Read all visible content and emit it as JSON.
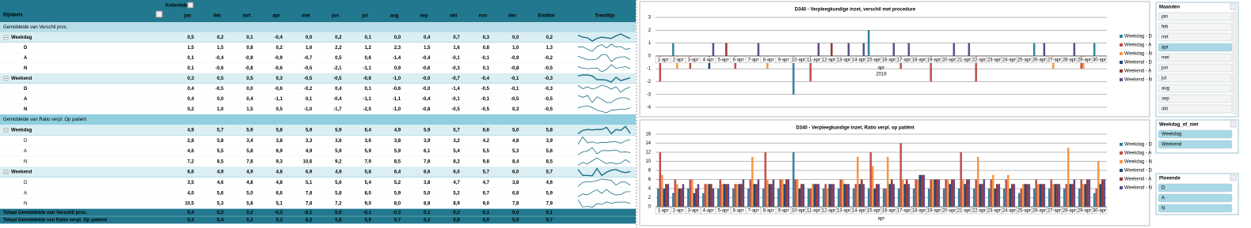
{
  "table": {
    "row_label_header": "Rijlabels",
    "col_label_header": "Kolomlabels",
    "columns": [
      "jan",
      "feb",
      "mrt",
      "apr",
      "mei",
      "jun",
      "jul",
      "aug",
      "sep",
      "okt",
      "nov",
      "dec",
      "Eindtot",
      "Trendlijn"
    ],
    "rows": [
      {
        "kind": "measure",
        "label": "Gemiddelde van Verschil proc."
      },
      {
        "kind": "group",
        "label": "Weekdag",
        "values": [
          "0,5",
          "0,2",
          "0,1",
          "-0,4",
          "0,0",
          "0,2",
          "0,1",
          "0,0",
          "0,4",
          "0,7",
          "0,3",
          "0,0",
          "0,2"
        ]
      },
      {
        "kind": "item",
        "label": "D",
        "values": [
          "1,5",
          "1,5",
          "0,8",
          "0,2",
          "1,6",
          "2,2",
          "1,2",
          "2,3",
          "1,5",
          "1,6",
          "0,8",
          "1,0",
          "1,3"
        ]
      },
      {
        "kind": "item",
        "label": "A",
        "values": [
          "0,1",
          "-0,4",
          "-0,9",
          "-0,9",
          "-0,7",
          "0,5",
          "0,6",
          "-1,4",
          "-0,4",
          "-0,1",
          "-0,1",
          "-0,9",
          "-0,2"
        ]
      },
      {
        "kind": "item",
        "label": "N",
        "values": [
          "0,1",
          "-0,6",
          "-0,8",
          "-0,6",
          "-0,5",
          "-2,1",
          "-1,1",
          "0,9",
          "-0,6",
          "-0,3",
          "0,1",
          "-0,8",
          "-0,5"
        ]
      },
      {
        "kind": "group",
        "label": "Weekend",
        "values": [
          "0,3",
          "0,5",
          "0,5",
          "0,3",
          "-0,5",
          "-0,5",
          "-0,6",
          "-1,0",
          "-0,0",
          "-0,7",
          "-0,4",
          "-0,1",
          "-0,3"
        ]
      },
      {
        "kind": "item",
        "label": "D",
        "values": [
          "0,4",
          "-0,5",
          "0,0",
          "-0,6",
          "-0,2",
          "0,4",
          "0,1",
          "-0,6",
          "-0,0",
          "-1,4",
          "-0,5",
          "-0,1",
          "-0,3"
        ]
      },
      {
        "kind": "item",
        "label": "A",
        "values": [
          "0,4",
          "0,0",
          "0,4",
          "-1,1",
          "0,1",
          "-0,4",
          "-1,1",
          "-1,1",
          "-0,4",
          "-0,1",
          "-0,1",
          "-0,5",
          "-0,5"
        ]
      },
      {
        "kind": "item",
        "label": "N",
        "values": [
          "0,2",
          "1,0",
          "1,5",
          "0,5",
          "-1,0",
          "-1,7",
          "-2,5",
          "-1,0",
          "-0,8",
          "-0,5",
          "-0,5",
          "0,3",
          "-0,5"
        ]
      },
      {
        "kind": "measure",
        "label": "Gemiddelde van Ratio verpl. Op patient"
      },
      {
        "kind": "group",
        "label": "Weekdag",
        "values": [
          "4,9",
          "5,7",
          "5,9",
          "5,8",
          "5,9",
          "5,9",
          "6,4",
          "4,9",
          "5,9",
          "5,7",
          "6,6",
          "5,0",
          "5,8"
        ]
      },
      {
        "kind": "item",
        "label": "D",
        "values": [
          "2,8",
          "5,8",
          "3,4",
          "3,8",
          "3,3",
          "3,6",
          "3,6",
          "3,8",
          "3,9",
          "3,2",
          "4,2",
          "4,8",
          "3,9"
        ]
      },
      {
        "kind": "item",
        "label": "A",
        "values": [
          "4,6",
          "5,5",
          "5,8",
          "6,9",
          "4,9",
          "5,9",
          "5,9",
          "5,9",
          "6,1",
          "5,4",
          "5,5",
          "5,3",
          "5,6"
        ]
      },
      {
        "kind": "item",
        "label": "N",
        "values": [
          "7,2",
          "8,5",
          "7,8",
          "9,3",
          "10,6",
          "9,2",
          "7,9",
          "8,5",
          "7,8",
          "8,2",
          "9,8",
          "8,4",
          "8,5"
        ]
      },
      {
        "kind": "group",
        "label": "Weekend",
        "values": [
          "6,6",
          "4,9",
          "4,9",
          "4,8",
          "6,9",
          "4,9",
          "5,8",
          "6,4",
          "6,6",
          "6,0",
          "5,7",
          "6,0",
          "5,7"
        ]
      },
      {
        "kind": "item",
        "label": "D",
        "values": [
          "3,5",
          "4,6",
          "4,8",
          "4,8",
          "5,1",
          "5,6",
          "5,4",
          "5,2",
          "3,8",
          "4,7",
          "4,7",
          "3,8",
          "4,6"
        ]
      },
      {
        "kind": "item",
        "label": "A",
        "values": [
          "4,0",
          "5,6",
          "5,0",
          "6,6",
          "7,8",
          "5,8",
          "8,0",
          "5,9",
          "5,0",
          "5,2",
          "6,7",
          "6,8",
          "5,9"
        ]
      },
      {
        "kind": "item",
        "label": "N",
        "values": [
          "10,5",
          "5,3",
          "5,8",
          "5,1",
          "7,8",
          "7,2",
          "9,0",
          "8,0",
          "8,8",
          "8,9",
          "9,0",
          "7,8",
          "7,9"
        ]
      },
      {
        "kind": "total",
        "label": "Totaal Gemiddelde van Verschil proc.",
        "values": [
          "0,4",
          "0,3",
          "0,2",
          "-0,2",
          "-0,1",
          "0,0",
          "-0,1",
          "-0,3",
          "0,1",
          "0,3",
          "0,1",
          "0,0",
          "0,1"
        ]
      },
      {
        "kind": "total",
        "label": "Totaal Gemiddelde van Ratio verpl. Op patient",
        "values": [
          "5,4",
          "5,4",
          "5,2",
          "5,2",
          "6,2",
          "5,8",
          "5,9",
          "5,7",
          "6,2",
          "5,8",
          "6,0",
          "5,5",
          "5,7"
        ]
      }
    ]
  },
  "chart_data": [
    {
      "type": "bar",
      "title": "D340 - Verpleegkundige inzet, verschil met procedure",
      "x_label": "apr",
      "x_sublabel": "2016",
      "categories": [
        "1-apr",
        "2-apr",
        "3-apr",
        "4-apr",
        "5-apr",
        "6-apr",
        "7-apr",
        "8-apr",
        "9-apr",
        "10-apr",
        "11-apr",
        "12-apr",
        "13-apr",
        "14-apr",
        "15-apr",
        "16-apr",
        "17-apr",
        "18-apr",
        "19-apr",
        "20-apr",
        "21-apr",
        "22-apr",
        "23-apr",
        "24-apr",
        "25-apr",
        "26-apr",
        "27-apr",
        "28-apr",
        "29-apr",
        "30-apr"
      ],
      "ylim": [
        -4,
        3
      ],
      "yticks": [
        -4,
        -3,
        -2,
        -1,
        0,
        1,
        2,
        3
      ],
      "grid": true,
      "legend": "right",
      "series": [
        {
          "name": "Weekdag - D",
          "color": "#31849b",
          "values": [
            0,
            1,
            0,
            0,
            0,
            0,
            0,
            0,
            0,
            -3,
            0,
            0,
            0,
            0,
            2,
            0,
            0,
            0,
            0,
            0,
            0,
            0,
            0,
            0,
            0,
            1,
            0,
            0,
            0,
            1
          ]
        },
        {
          "name": "Weekdag - A",
          "color": "#c0504d",
          "values": [
            -2,
            0,
            -1,
            0,
            0,
            -1,
            0,
            0,
            0,
            0,
            -2,
            0,
            0,
            0,
            0,
            0,
            -1,
            0,
            -2,
            0,
            0,
            -2,
            0,
            0,
            0,
            0,
            0,
            0,
            -1,
            0
          ]
        },
        {
          "name": "Weekdag - N",
          "color": "#f79646",
          "values": [
            0,
            -1,
            0,
            0,
            0,
            0,
            0,
            -1,
            0,
            0,
            0,
            0,
            0,
            0,
            0,
            0,
            0,
            0,
            0,
            0,
            0,
            0,
            0,
            0,
            0,
            0,
            -1,
            0,
            -1,
            0
          ]
        },
        {
          "name": "Weekend - D",
          "color": "#1f497d",
          "values": [
            0,
            0,
            0,
            -1,
            0,
            0,
            0,
            0,
            0,
            0,
            0,
            0,
            0,
            0,
            0,
            0,
            0,
            0,
            0,
            0,
            0,
            0,
            0,
            0,
            0,
            0,
            0,
            0,
            0,
            0
          ]
        },
        {
          "name": "Weekend - A",
          "color": "#953735",
          "values": [
            0,
            0,
            0,
            0,
            1,
            0,
            0,
            0,
            0,
            0,
            0,
            1,
            0,
            0,
            0,
            0,
            0,
            0,
            0,
            0,
            0,
            0,
            0,
            0,
            0,
            0,
            0,
            0,
            0,
            0
          ]
        },
        {
          "name": "Weekend - N",
          "color": "#5f4b8b",
          "values": [
            0,
            0,
            0,
            1,
            0,
            0,
            1,
            0,
            0,
            0,
            1,
            0,
            1,
            1,
            0,
            1,
            1,
            0,
            0,
            1,
            1,
            0,
            0,
            0,
            0,
            1,
            0,
            1,
            0,
            0
          ]
        }
      ]
    },
    {
      "type": "bar",
      "title": "D340 - Verpleegkundige inzet, Ratio verpl. op patiënt",
      "x_label": "apr",
      "categories": [
        "1-apr",
        "2-apr",
        "3-apr",
        "4-apr",
        "5-apr",
        "6-apr",
        "7-apr",
        "8-apr",
        "9-apr",
        "10-apr",
        "11-apr",
        "12-apr",
        "13-apr",
        "14-apr",
        "15-apr",
        "16-apr",
        "17-apr",
        "18-apr",
        "19-apr",
        "20-apr",
        "21-apr",
        "22-apr",
        "23-apr",
        "24-apr",
        "25-apr",
        "26-apr",
        "27-apr",
        "28-apr",
        "29-apr",
        "30-apr"
      ],
      "ylim": [
        0,
        16
      ],
      "yticks": [
        0,
        2,
        4,
        6,
        8,
        10,
        12,
        14,
        16
      ],
      "grid": true,
      "legend": "right",
      "series": [
        {
          "name": "Weekdag - D",
          "color": "#31849b",
          "values": [
            4,
            3,
            4,
            3,
            4,
            4,
            4,
            4,
            4,
            12,
            4,
            4,
            4,
            4,
            4,
            4,
            4,
            4,
            4,
            4,
            4,
            4,
            4,
            4,
            3,
            4,
            4,
            4,
            4,
            3
          ]
        },
        {
          "name": "Weekdag - A",
          "color": "#c0504d",
          "values": [
            12,
            6,
            6,
            5,
            6,
            5,
            6,
            12,
            6,
            6,
            4,
            5,
            6,
            5,
            12,
            4,
            14,
            6,
            6,
            6,
            12,
            6,
            6,
            6,
            4,
            6,
            6,
            5,
            6,
            4
          ]
        },
        {
          "name": "Weekdag - N",
          "color": "#f79646",
          "values": [
            7,
            5,
            6,
            5,
            5,
            5,
            11,
            6,
            6,
            6,
            5,
            4,
            6,
            11,
            9,
            11,
            6,
            6,
            6,
            6,
            6,
            11,
            7,
            7,
            5,
            5,
            5,
            13,
            5,
            10
          ]
        },
        {
          "name": "Weekend - D",
          "color": "#1f497d",
          "values": [
            4,
            4,
            3,
            5,
            5,
            5,
            5,
            5,
            5,
            4,
            5,
            5,
            5,
            5,
            4,
            5,
            5,
            7,
            6,
            5,
            5,
            5,
            4,
            4,
            5,
            5,
            5,
            5,
            5,
            5
          ]
        },
        {
          "name": "Weekend - A",
          "color": "#953735",
          "values": [
            5,
            4,
            4,
            5,
            5,
            5,
            5,
            5,
            6,
            5,
            5,
            5,
            5,
            6,
            5,
            6,
            6,
            7,
            6,
            6,
            6,
            5,
            5,
            5,
            5,
            5,
            5,
            5,
            6,
            6
          ]
        },
        {
          "name": "Weekend - N",
          "color": "#5f4b8b",
          "values": [
            5,
            5,
            5,
            4,
            5,
            6,
            6,
            6,
            6,
            5,
            5,
            5,
            5,
            5,
            5,
            5,
            5,
            7,
            6,
            6,
            6,
            6,
            5,
            5,
            5,
            5,
            5,
            6,
            6,
            6
          ]
        }
      ]
    }
  ],
  "slicers": [
    {
      "title": "Maanden",
      "items": [
        {
          "label": "jan"
        },
        {
          "label": "feb"
        },
        {
          "label": "mrt"
        },
        {
          "label": "apr",
          "selected": true
        },
        {
          "label": "mei"
        },
        {
          "label": "jun"
        },
        {
          "label": "jul"
        },
        {
          "label": "aug"
        },
        {
          "label": "sep"
        },
        {
          "label": "okt"
        }
      ]
    },
    {
      "title": "Weekdag_of_niet",
      "items": [
        {
          "label": "Weekdag",
          "selected": true
        },
        {
          "label": "Weekend",
          "selected": true
        }
      ]
    },
    {
      "title": "Ploeende",
      "items": [
        {
          "label": "D",
          "selected": true
        },
        {
          "label": "A",
          "selected": true
        },
        {
          "label": "N",
          "selected": true
        }
      ]
    }
  ]
}
